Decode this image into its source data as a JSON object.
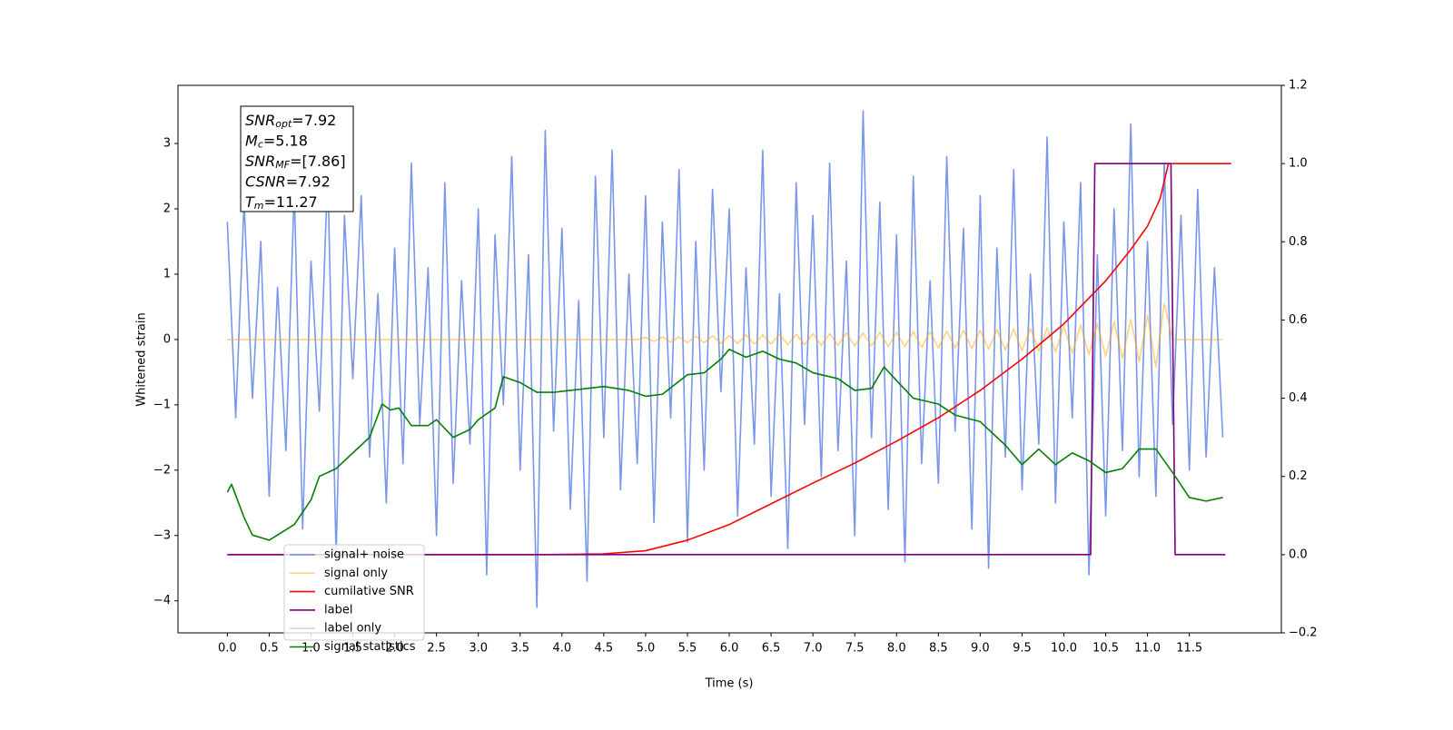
{
  "chart_data": {
    "type": "line",
    "xlabel": "Time (s)",
    "ylabel": "Whitened strain",
    "xlim": [
      -0.59,
      12.6
    ],
    "ylim": [
      -4.49,
      3.89
    ],
    "y2lim": [
      -0.2,
      1.2
    ],
    "xticks": [
      {
        "value": 0,
        "label": "0.0"
      },
      0.5,
      {
        "value": 1,
        "label": "1.0"
      },
      1.5,
      {
        "value": 2,
        "label": "2.0"
      },
      2.5,
      {
        "value": 3,
        "label": "3.0"
      },
      3.5,
      {
        "value": 4,
        "label": "4.0"
      },
      4.5,
      {
        "value": 5,
        "label": "5.0"
      },
      5.5,
      {
        "value": 6,
        "label": "6.0"
      },
      6.5,
      {
        "value": 7,
        "label": "7.0"
      },
      7.5,
      {
        "value": 8,
        "label": "8.0"
      },
      8.5,
      {
        "value": 9,
        "label": "9.0"
      },
      9.5,
      {
        "value": 10,
        "label": "10.0"
      },
      10.5,
      {
        "value": 11,
        "label": "11.0"
      },
      11.5
    ],
    "yticks": [
      {
        "value": -4,
        "label": "−4"
      },
      {
        "value": -3,
        "label": "−3"
      },
      {
        "value": -2,
        "label": "−2"
      },
      {
        "value": -1,
        "label": "−1"
      },
      0,
      1,
      2,
      3
    ],
    "y2ticks": [
      {
        "value": -0.2,
        "label": "−0.2"
      },
      {
        "value": 0,
        "label": "0.0"
      },
      0.2,
      0.4,
      0.6,
      0.8,
      {
        "value": 1,
        "label": "1.0"
      },
      1.2
    ],
    "legend_loc": "lower left",
    "annotation": [
      {
        "base": "SNR",
        "sub": "opt",
        "rest": "=7.92"
      },
      {
        "base": "M",
        "sub": "c",
        "rest": "=5.18"
      },
      {
        "base": "SNR",
        "sub": "MF",
        "rest": "=[7.86]"
      },
      {
        "base": "CSNR",
        "sub": "",
        "rest": "=7.92"
      },
      {
        "base": "T",
        "sub": "m",
        "rest": "=11.27"
      }
    ],
    "x": [
      0,
      0.1,
      0.2,
      0.3,
      0.4,
      0.5,
      0.6,
      0.7,
      0.8,
      0.9,
      1,
      1.1,
      1.2,
      1.3,
      1.4,
      1.5,
      1.6,
      1.7,
      1.8,
      1.9,
      2,
      2.1,
      2.2,
      2.3,
      2.4,
      2.5,
      2.6,
      2.7,
      2.8,
      2.9,
      3,
      3.1,
      3.2,
      3.3,
      3.4,
      3.5,
      3.6,
      3.7,
      3.8,
      3.9,
      4,
      4.1,
      4.2,
      4.3,
      4.4,
      4.5,
      4.6,
      4.7,
      4.8,
      4.9,
      5,
      5.1,
      5.2,
      5.3,
      5.4,
      5.5,
      5.6,
      5.7,
      5.8,
      5.9,
      6,
      6.1,
      6.2,
      6.3,
      6.4,
      6.5,
      6.6,
      6.7,
      6.8,
      6.9,
      7,
      7.1,
      7.2,
      7.3,
      7.4,
      7.5,
      7.6,
      7.7,
      7.8,
      7.9,
      8,
      8.1,
      8.2,
      8.3,
      8.4,
      8.5,
      8.6,
      8.7,
      8.8,
      8.9,
      9,
      9.1,
      9.2,
      9.3,
      9.4,
      9.5,
      9.6,
      9.7,
      9.8,
      9.9,
      10,
      10.1,
      10.2,
      10.3,
      10.4,
      10.5,
      10.6,
      10.7,
      10.8,
      10.9,
      11,
      11.1,
      11.2,
      11.3,
      11.4,
      11.5,
      11.6,
      11.7,
      11.8,
      11.9
    ],
    "series": [
      {
        "name": "signal+ noise",
        "color": "royalblue",
        "alpha": 0.7,
        "values": [
          1.8,
          -1.2,
          2.1,
          -0.9,
          1.5,
          -2.4,
          0.8,
          -1.7,
          2.3,
          -2.9,
          1.2,
          -1.1,
          2.6,
          -3.3,
          1.9,
          -0.6,
          2.2,
          -1.8,
          0.7,
          -2.5,
          1.4,
          -1.9,
          2.7,
          -1.3,
          1.1,
          -3.0,
          2.4,
          -2.2,
          0.9,
          -1.6,
          2.0,
          -3.6,
          1.6,
          -1.0,
          2.8,
          -2.0,
          1.3,
          -4.1,
          3.2,
          -1.4,
          1.7,
          -2.6,
          0.6,
          -3.7,
          2.5,
          -1.5,
          2.9,
          -2.3,
          1.0,
          -1.9,
          2.2,
          -2.8,
          1.8,
          -1.2,
          2.6,
          -3.1,
          1.5,
          -2.0,
          2.3,
          -0.8,
          2.0,
          -2.7,
          1.1,
          -1.6,
          2.9,
          -2.4,
          0.7,
          -3.2,
          2.4,
          -1.3,
          1.9,
          -2.1,
          2.7,
          -1.7,
          1.2,
          -3.0,
          3.5,
          -1.5,
          2.1,
          -2.6,
          1.6,
          -3.4,
          2.5,
          -1.9,
          0.9,
          -2.2,
          2.8,
          -1.4,
          1.7,
          -2.9,
          2.2,
          -3.5,
          1.4,
          -1.8,
          2.6,
          -2.3,
          1.0,
          -1.6,
          3.1,
          -2.5,
          1.8,
          -1.2,
          2.4,
          -3.6,
          1.3,
          -2.7,
          2.0,
          -1.7,
          3.3,
          -2.1,
          1.5,
          -2.4,
          2.7,
          -1.3,
          1.9,
          -2.0,
          2.3,
          -1.8,
          1.1,
          -1.5
        ]
      },
      {
        "name": "signal only",
        "color": "orange",
        "alpha": 0.5,
        "values": [
          0,
          0,
          0,
          0,
          0,
          0,
          0,
          0,
          0,
          0,
          0,
          0,
          0,
          0,
          0,
          0,
          0,
          0,
          0,
          0,
          0,
          0,
          0,
          0,
          0,
          0,
          0,
          0,
          0,
          0,
          0,
          0,
          0,
          0,
          0,
          0,
          0,
          0,
          0,
          0,
          0,
          0,
          0,
          0,
          0,
          0,
          0,
          0,
          0,
          0,
          0.03,
          -0.03,
          0.04,
          -0.04,
          0.04,
          -0.05,
          0.05,
          -0.05,
          0.06,
          -0.06,
          0.06,
          -0.06,
          0.07,
          -0.07,
          0.07,
          -0.07,
          0.08,
          -0.08,
          0.08,
          -0.08,
          0.09,
          -0.09,
          0.09,
          -0.09,
          0.1,
          -0.1,
          0.1,
          -0.1,
          0.11,
          -0.11,
          0.11,
          -0.11,
          0.12,
          -0.12,
          0.12,
          -0.13,
          0.13,
          -0.13,
          0.14,
          -0.14,
          0.14,
          -0.15,
          0.15,
          -0.16,
          0.16,
          -0.17,
          0.17,
          -0.18,
          0.18,
          -0.19,
          0.2,
          -0.21,
          0.22,
          -0.23,
          0.24,
          -0.26,
          0.27,
          -0.29,
          0.31,
          -0.34,
          0.37,
          -0.42,
          0.55,
          0,
          0,
          0,
          0,
          0,
          0,
          0
        ]
      },
      {
        "name": "cumilative SNR",
        "color": "red",
        "axis": "y2",
        "x": [
          0,
          3.8,
          4.5,
          5,
          5.5,
          6,
          6.5,
          7,
          7.5,
          8,
          8.5,
          9,
          9.5,
          10,
          10.5,
          10.8,
          11,
          11.15,
          11.25,
          12
        ],
        "values": [
          0,
          0,
          0.002,
          0.01,
          0.037,
          0.077,
          0.13,
          0.183,
          0.234,
          0.29,
          0.35,
          0.42,
          0.5,
          0.59,
          0.7,
          0.78,
          0.84,
          0.91,
          1,
          1
        ]
      },
      {
        "name": "label",
        "color": "purple",
        "axis": "y2",
        "x": [
          0,
          10.32,
          10.37,
          11.28,
          11.33,
          11.93
        ],
        "values": [
          0,
          0,
          1,
          1,
          0,
          0
        ]
      },
      {
        "name": "label only",
        "color": "#d3d3d3",
        "axis": "y2",
        "x": [
          0,
          10.32,
          10.37,
          11.28,
          11.33,
          11.93
        ],
        "values": [
          0,
          0,
          1,
          1,
          0,
          0
        ]
      },
      {
        "name": "signal statistics",
        "color": "green",
        "axis": "y2",
        "x": [
          0,
          0.05,
          0.2,
          0.3,
          0.5,
          0.8,
          1,
          1.1,
          1.3,
          1.5,
          1.7,
          1.85,
          1.95,
          2.05,
          2.2,
          2.4,
          2.5,
          2.7,
          2.9,
          3,
          3.2,
          3.3,
          3.5,
          3.7,
          3.9,
          4.1,
          4.3,
          4.5,
          4.8,
          5,
          5.2,
          5.5,
          5.7,
          5.9,
          6,
          6.2,
          6.4,
          6.6,
          6.8,
          7,
          7.3,
          7.5,
          7.7,
          7.85,
          8,
          8.2,
          8.5,
          8.7,
          9,
          9.3,
          9.5,
          9.7,
          9.9,
          10.1,
          10.3,
          10.5,
          10.7,
          10.9,
          11.1,
          11.3,
          11.5,
          11.7,
          11.9
        ],
        "values": [
          0.16,
          0.18,
          0.095,
          0.05,
          0.037,
          0.077,
          0.14,
          0.2,
          0.22,
          0.26,
          0.3,
          0.385,
          0.37,
          0.375,
          0.33,
          0.33,
          0.345,
          0.3,
          0.32,
          0.345,
          0.375,
          0.455,
          0.44,
          0.415,
          0.415,
          0.42,
          0.425,
          0.43,
          0.42,
          0.405,
          0.41,
          0.46,
          0.465,
          0.5,
          0.525,
          0.505,
          0.52,
          0.5,
          0.49,
          0.465,
          0.45,
          0.42,
          0.425,
          0.48,
          0.445,
          0.4,
          0.385,
          0.357,
          0.34,
          0.28,
          0.23,
          0.27,
          0.23,
          0.26,
          0.24,
          0.21,
          0.22,
          0.27,
          0.27,
          0.21,
          0.146,
          0.137,
          0.146
        ]
      }
    ]
  }
}
